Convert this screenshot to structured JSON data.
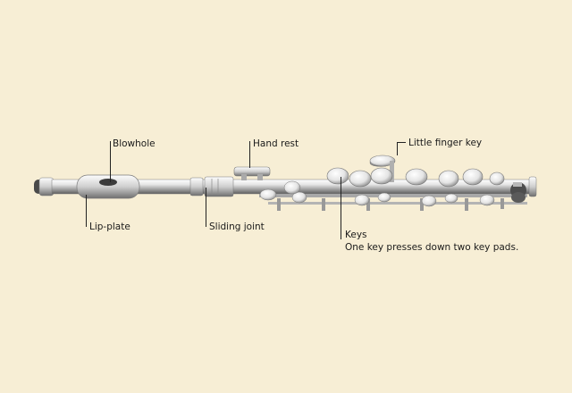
{
  "labels": {
    "blowhole": "Blowhole",
    "hand_rest": "Hand rest",
    "little_finger_key": "Little finger key",
    "lip_plate": "Lip-plate",
    "sliding_joint": "Sliding joint",
    "keys": "Keys",
    "keys_note": "One key presses down two key pads."
  },
  "colors": {
    "background": "#f7eed5",
    "leader_line": "#222222",
    "metal": "#c9c9c9"
  }
}
